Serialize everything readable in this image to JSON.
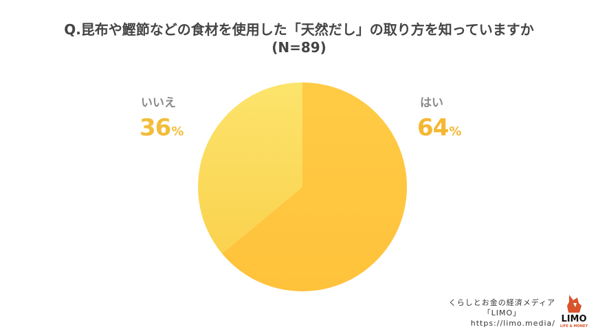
{
  "chart_data": {
    "type": "pie",
    "title_lines": [
      "Q.昆布や鰹節などの食材を使用した「天然だし」の取り方を知っていますか",
      "(N=89)"
    ],
    "slices": [
      {
        "label": "はい",
        "value": 64,
        "value_text": "64",
        "unit": "%",
        "color": "#FFC441",
        "label_color": "#F5B731"
      },
      {
        "label": "いいえ",
        "value": 36,
        "value_text": "36",
        "unit": "%",
        "color": "#FCDD5E",
        "label_color": "#F2BD3A"
      }
    ],
    "start_angle_deg": 0,
    "direction": "clockwise"
  },
  "credit": {
    "line1": "くらしとお金の経済メディア",
    "line2": "「LIMO」",
    "line3": "https://limo.media/"
  },
  "logo": {
    "text": "LIMO",
    "sub": "LIFE & MONEY",
    "color": "#D9542B"
  }
}
